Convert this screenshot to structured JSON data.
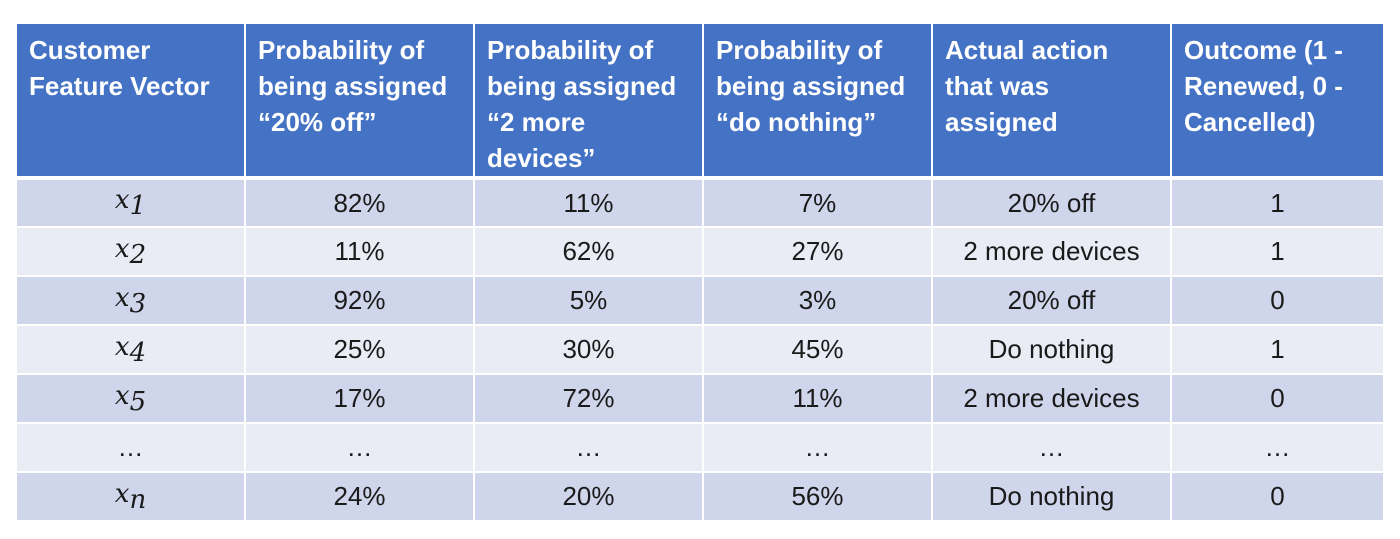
{
  "table": {
    "headers": [
      "Customer Feature Vector",
      "Probability of being assigned “20% off”",
      "Probability of being assigned “2 more devices”",
      "Probability of being assigned “do nothing”",
      "Actual action that was assigned",
      "Outcome (1 - Renewed, 0 - Cancelled)"
    ],
    "rows": [
      {
        "var": "x",
        "sub": "1",
        "p_off": "82%",
        "p_devices": "11%",
        "p_nothing": "7%",
        "action": "20% off",
        "outcome": "1"
      },
      {
        "var": "x",
        "sub": "2",
        "p_off": "11%",
        "p_devices": "62%",
        "p_nothing": "27%",
        "action": "2 more devices",
        "outcome": "1"
      },
      {
        "var": "x",
        "sub": "3",
        "p_off": "92%",
        "p_devices": "5%",
        "p_nothing": "3%",
        "action": "20% off",
        "outcome": "0"
      },
      {
        "var": "x",
        "sub": "4",
        "p_off": "25%",
        "p_devices": "30%",
        "p_nothing": "45%",
        "action": "Do nothing",
        "outcome": "1"
      },
      {
        "var": "x",
        "sub": "5",
        "p_off": "17%",
        "p_devices": "72%",
        "p_nothing": "11%",
        "action": "2 more devices",
        "outcome": "0"
      },
      {
        "ellipsis": "…",
        "p_off": "…",
        "p_devices": "…",
        "p_nothing": "…",
        "action": "…",
        "outcome": "…"
      },
      {
        "var": "x",
        "sub": "n",
        "p_off": "24%",
        "p_devices": "20%",
        "p_nothing": "56%",
        "action": "Do nothing",
        "outcome": "0"
      }
    ]
  }
}
